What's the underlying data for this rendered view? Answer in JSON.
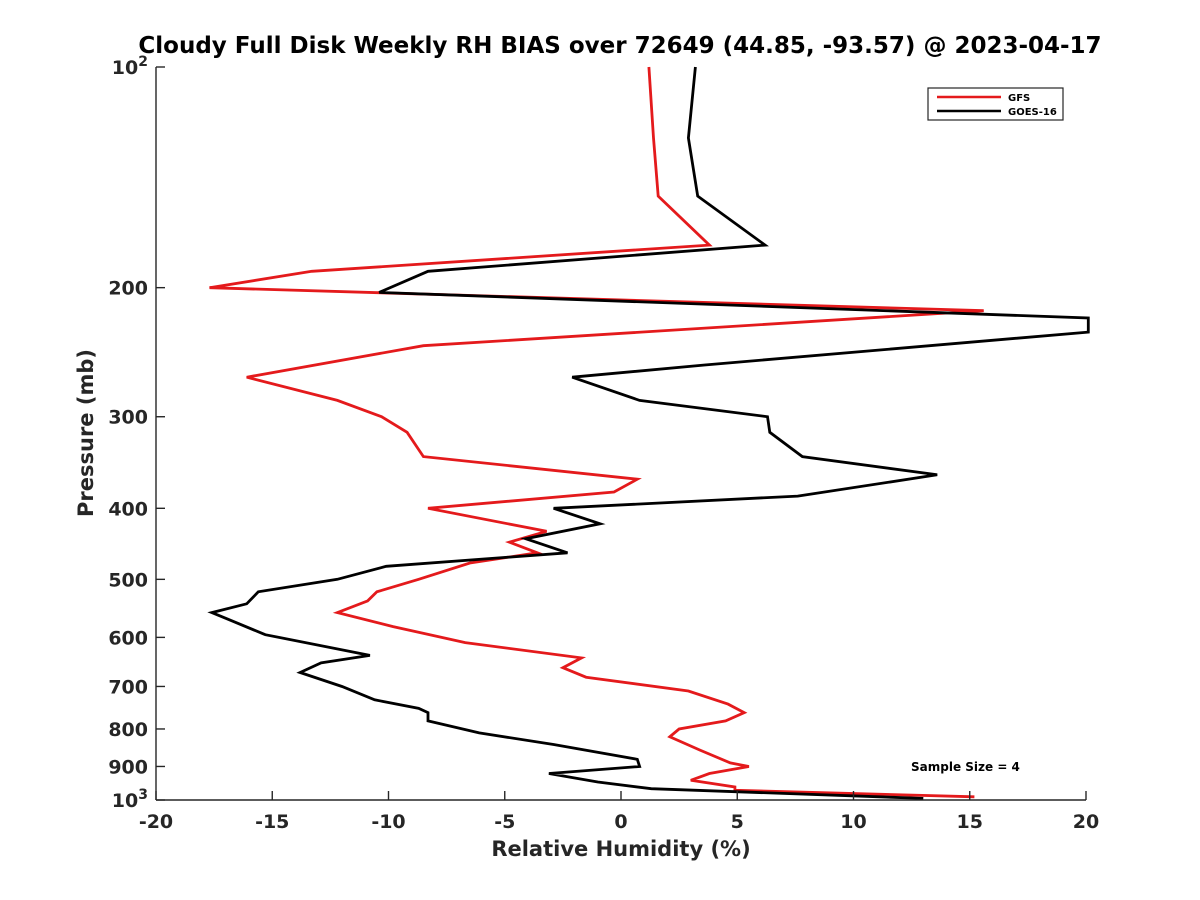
{
  "chart_data": {
    "type": "line",
    "title": "Cloudy Full Disk Weekly RH BIAS over 72649 (44.85, -93.57) @ 2023-04-17",
    "xlabel": "Relative Humidity (%)",
    "ylabel": "Pressure (mb)",
    "xlim": [
      -20,
      20
    ],
    "ylim": [
      100,
      1000
    ],
    "yscale": "log",
    "y_reversed": true,
    "grid": false,
    "legend_position": "top-right",
    "x_ticks": [
      -20,
      -15,
      -10,
      -5,
      0,
      5,
      10,
      15,
      20
    ],
    "x_tick_labels": [
      "-20",
      "-15",
      "-10",
      "-5",
      "0",
      "5",
      "10",
      "15",
      "20"
    ],
    "y_ticks": [
      100,
      200,
      300,
      400,
      500,
      600,
      700,
      800,
      900,
      1000
    ],
    "y_tick_labels": [
      {
        "base": "10",
        "exp": "2"
      },
      {
        "base": "200",
        "exp": ""
      },
      {
        "base": "300",
        "exp": ""
      },
      {
        "base": "400",
        "exp": ""
      },
      {
        "base": "500",
        "exp": ""
      },
      {
        "base": "600",
        "exp": ""
      },
      {
        "base": "700",
        "exp": ""
      },
      {
        "base": "800",
        "exp": ""
      },
      {
        "base": "900",
        "exp": ""
      },
      {
        "base": "10",
        "exp": "3"
      }
    ],
    "annotation": "Sample Size = 4",
    "series": [
      {
        "name": "GFS",
        "color": "#e41a1c",
        "points": [
          [
            1.2,
            100
          ],
          [
            1.4,
            125
          ],
          [
            1.6,
            150
          ],
          [
            3.8,
            175
          ],
          [
            -13.3,
            190
          ],
          [
            -17.7,
            200
          ],
          [
            15.6,
            215
          ],
          [
            -8.5,
            240
          ],
          [
            -16.1,
            265
          ],
          [
            -12.2,
            285
          ],
          [
            -10.3,
            300
          ],
          [
            -9.2,
            315
          ],
          [
            -8.5,
            340
          ],
          [
            0.7,
            365
          ],
          [
            -0.3,
            380
          ],
          [
            -8.3,
            400
          ],
          [
            -3.2,
            430
          ],
          [
            -4.8,
            445
          ],
          [
            -3.6,
            460
          ],
          [
            -6.5,
            475
          ],
          [
            -8.7,
            500
          ],
          [
            -10.5,
            520
          ],
          [
            -10.9,
            535
          ],
          [
            -12.2,
            555
          ],
          [
            -9.8,
            580
          ],
          [
            -6.7,
            610
          ],
          [
            -1.7,
            640
          ],
          [
            -2.5,
            660
          ],
          [
            -1.5,
            680
          ],
          [
            2.9,
            710
          ],
          [
            4.6,
            740
          ],
          [
            5.3,
            760
          ],
          [
            4.5,
            780
          ],
          [
            2.5,
            800
          ],
          [
            2.1,
            820
          ],
          [
            3.4,
            855
          ],
          [
            4.7,
            890
          ],
          [
            5.5,
            900
          ],
          [
            3.8,
            920
          ],
          [
            3.0,
            940
          ],
          [
            4.9,
            960
          ],
          [
            4.9,
            970
          ],
          [
            15.2,
            990
          ]
        ]
      },
      {
        "name": "GOES-16",
        "color": "#000000",
        "points": [
          [
            3.2,
            100
          ],
          [
            2.9,
            125
          ],
          [
            3.3,
            150
          ],
          [
            6.2,
            175
          ],
          [
            -8.3,
            190
          ],
          [
            -10.4,
            203
          ],
          [
            20.1,
            220
          ],
          [
            20.1,
            230
          ],
          [
            3.6,
            255
          ],
          [
            -2.1,
            265
          ],
          [
            0.8,
            285
          ],
          [
            6.3,
            300
          ],
          [
            6.4,
            315
          ],
          [
            7.8,
            340
          ],
          [
            13.6,
            360
          ],
          [
            7.6,
            385
          ],
          [
            -2.9,
            400
          ],
          [
            -0.9,
            420
          ],
          [
            -4.1,
            440
          ],
          [
            -2.3,
            460
          ],
          [
            -10.1,
            480
          ],
          [
            -12.2,
            500
          ],
          [
            -15.6,
            520
          ],
          [
            -16.1,
            540
          ],
          [
            -17.6,
            555
          ],
          [
            -17.0,
            565
          ],
          [
            -15.3,
            595
          ],
          [
            -10.8,
            635
          ],
          [
            -12.9,
            650
          ],
          [
            -13.8,
            670
          ],
          [
            -12.0,
            700
          ],
          [
            -10.6,
            730
          ],
          [
            -8.7,
            750
          ],
          [
            -8.3,
            760
          ],
          [
            -8.3,
            780
          ],
          [
            -6.1,
            810
          ],
          [
            -2.9,
            840
          ],
          [
            0.7,
            880
          ],
          [
            0.8,
            900
          ],
          [
            -3.1,
            920
          ],
          [
            -1.0,
            945
          ],
          [
            1.3,
            965
          ],
          [
            13.0,
            995
          ]
        ]
      }
    ]
  }
}
